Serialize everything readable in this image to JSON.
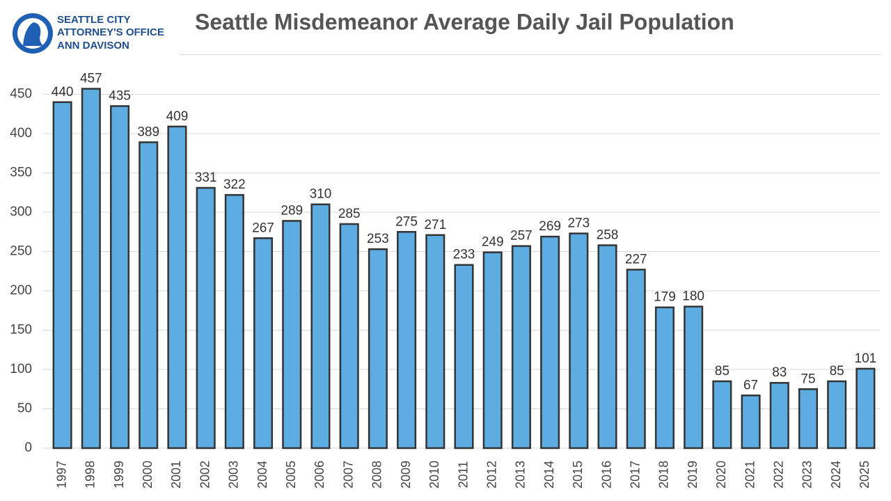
{
  "logo": [
    "SEATTLE CITY",
    "ATTORNEY'S OFFICE",
    "ANN DAVISON"
  ],
  "chart_data": {
    "type": "bar",
    "title": "Seattle Misdemeanor Average Daily Jail Population",
    "categories": [
      "1997",
      "1998",
      "1999",
      "2000",
      "2001",
      "2002",
      "2003",
      "2004",
      "2005",
      "2006",
      "2007",
      "2008",
      "2009",
      "2010",
      "2011",
      "2012",
      "2013",
      "2014",
      "2015",
      "2016",
      "2017",
      "2018",
      "2019",
      "2020",
      "2021",
      "2022",
      "2023",
      "2024",
      "2025"
    ],
    "values": [
      440,
      457,
      435,
      389,
      409,
      331,
      322,
      267,
      289,
      310,
      285,
      253,
      275,
      271,
      233,
      249,
      257,
      269,
      273,
      258,
      227,
      179,
      180,
      85,
      67,
      83,
      75,
      85,
      101
    ],
    "color": "#5dade2",
    "ylim": [
      0,
      500
    ],
    "yticks": [
      0,
      50,
      100,
      150,
      200,
      250,
      300,
      350,
      400,
      450
    ],
    "grid": true
  }
}
